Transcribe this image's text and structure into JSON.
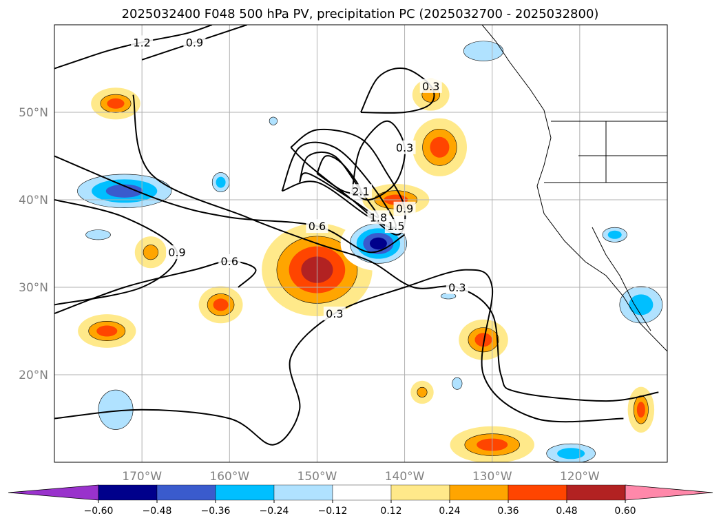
{
  "chart_data": {
    "type": "contour-map",
    "title": "2025032400 F048 500 hPa PV, precipitation PC (2025032700 - 2025032800)",
    "xlim": [
      -180,
      -110
    ],
    "ylim": [
      10,
      60
    ],
    "grid": true,
    "lon_ticks": [
      {
        "value": -170,
        "label": "170°W"
      },
      {
        "value": -160,
        "label": "160°W"
      },
      {
        "value": -150,
        "label": "150°W"
      },
      {
        "value": -140,
        "label": "140°W"
      },
      {
        "value": -130,
        "label": "130°W"
      },
      {
        "value": -120,
        "label": "120°W"
      }
    ],
    "lat_ticks": [
      {
        "value": 20,
        "label": "20°N"
      },
      {
        "value": 30,
        "label": "30°N"
      },
      {
        "value": 40,
        "label": "40°N"
      },
      {
        "value": 50,
        "label": "50°N"
      }
    ],
    "colorbar": {
      "levels": [
        "−0.60",
        "−0.48",
        "−0.36",
        "−0.24",
        "−0.12",
        "0.12",
        "0.24",
        "0.36",
        "0.48",
        "0.60"
      ],
      "colors": [
        "#9932cc",
        "#00008b",
        "#3a5bcd",
        "#00bfff",
        "#b0e2ff",
        "#ffffff",
        "#ffe98a",
        "#ffa500",
        "#ff4500",
        "#b22222",
        "#ff88aa"
      ]
    },
    "pv_contours": [
      {
        "label": "0.3",
        "points": [
          [
            -180,
            15
          ],
          [
            -170,
            16
          ],
          [
            -160,
            15
          ],
          [
            -155,
            12
          ],
          [
            -152,
            16
          ],
          [
            -153,
            22
          ],
          [
            -148,
            27
          ],
          [
            -140,
            30
          ],
          [
            -133,
            32
          ],
          [
            -130,
            30
          ],
          [
            -131,
            20
          ],
          [
            -125,
            15
          ],
          [
            -115,
            15
          ]
        ]
      },
      {
        "label": "0.3",
        "points": [
          [
            -145,
            50
          ],
          [
            -143,
            54
          ],
          [
            -140,
            55
          ],
          [
            -137,
            53
          ],
          [
            -137,
            51
          ],
          [
            -140,
            50
          ],
          [
            -145,
            50
          ]
        ]
      },
      {
        "label": "0.3",
        "points": [
          [
            -146,
            41
          ],
          [
            -145,
            46
          ],
          [
            -142,
            49
          ],
          [
            -140,
            46
          ],
          [
            -141,
            42
          ],
          [
            -144,
            40
          ],
          [
            -146,
            41
          ]
        ]
      },
      {
        "label": "0.3",
        "points": [
          [
            -171,
            52
          ],
          [
            -169,
            43
          ],
          [
            -158,
            38
          ],
          [
            -150,
            35
          ],
          [
            -144,
            33
          ],
          [
            -139,
            30
          ],
          [
            -134,
            30
          ],
          [
            -130,
            27
          ],
          [
            -129,
            20
          ],
          [
            -127,
            18
          ],
          [
            -117,
            17
          ],
          [
            -111,
            18
          ]
        ]
      },
      {
        "label": "0.6",
        "points": [
          [
            -180,
            45
          ],
          [
            -168,
            40
          ],
          [
            -160,
            38
          ],
          [
            -150,
            37
          ],
          [
            -144,
            34
          ],
          [
            -140,
            36
          ]
        ]
      },
      {
        "label": "0.6",
        "points": [
          [
            -180,
            27
          ],
          [
            -172,
            30
          ],
          [
            -164,
            32
          ],
          [
            -160,
            33
          ],
          [
            -157,
            32
          ],
          [
            -159,
            30
          ]
        ]
      },
      {
        "label": "0.9",
        "points": [
          [
            -180,
            40
          ],
          [
            -172,
            38
          ],
          [
            -166,
            34
          ],
          [
            -170,
            30
          ],
          [
            -180,
            28
          ]
        ]
      },
      {
        "label": "0.9",
        "points": [
          [
            -170,
            56
          ],
          [
            -164,
            58
          ],
          [
            -158,
            60
          ]
        ]
      },
      {
        "label": "0.9",
        "points": [
          [
            -153,
            46
          ],
          [
            -150,
            48
          ],
          [
            -145,
            47
          ],
          [
            -142,
            43
          ],
          [
            -140,
            39
          ],
          [
            -141,
            36
          ],
          [
            -146,
            40
          ],
          [
            -151,
            44
          ],
          [
            -153,
            46
          ]
        ]
      },
      {
        "label": "1.2",
        "points": [
          [
            -180,
            55
          ],
          [
            -174,
            57
          ],
          [
            -170,
            58
          ],
          [
            -165,
            59
          ],
          [
            -162,
            60
          ]
        ]
      },
      {
        "label": "1.5",
        "points": [
          [
            -154,
            41
          ],
          [
            -152,
            46
          ],
          [
            -148,
            46
          ],
          [
            -144,
            42
          ],
          [
            -141,
            37
          ],
          [
            -144,
            38
          ],
          [
            -150,
            42
          ],
          [
            -154,
            41
          ]
        ]
      },
      {
        "label": "1.8",
        "points": [
          [
            -152,
            42
          ],
          [
            -151,
            45
          ],
          [
            -148,
            45
          ],
          [
            -145,
            41
          ],
          [
            -143,
            38
          ],
          [
            -146,
            40
          ],
          [
            -151,
            43
          ],
          [
            -152,
            42
          ]
        ]
      },
      {
        "label": "2.1",
        "points": [
          [
            -150,
            43
          ],
          [
            -149,
            45
          ],
          [
            -147,
            44
          ],
          [
            -145,
            41
          ],
          [
            -147,
            41
          ],
          [
            -150,
            43
          ]
        ]
      }
    ],
    "precip_pc_blobs": [
      {
        "lon": -150,
        "lat": 32,
        "rx": 6,
        "ry": 5,
        "values": [
          0.24,
          0.36,
          0.48
        ]
      },
      {
        "lon": -143,
        "lat": 35,
        "rx": 4,
        "ry": 2.8,
        "values": [
          -0.24,
          -0.36,
          -0.48,
          -0.6
        ]
      },
      {
        "lon": -141,
        "lat": 40,
        "rx": 3.5,
        "ry": 1.5,
        "values": [
          0.24,
          0.36
        ]
      },
      {
        "lon": -136,
        "lat": 46,
        "rx": 2.8,
        "ry": 3,
        "values": [
          0.24,
          0.36
        ]
      },
      {
        "lon": -137,
        "lat": 52,
        "rx": 1.8,
        "ry": 1.5,
        "values": [
          0.24
        ]
      },
      {
        "lon": -172,
        "lat": 41,
        "rx": 7,
        "ry": 2.5,
        "values": [
          -0.24,
          -0.36,
          -0.48
        ]
      },
      {
        "lon": -173,
        "lat": 51,
        "rx": 2.5,
        "ry": 1.5,
        "values": [
          0.24,
          0.36
        ]
      },
      {
        "lon": -175,
        "lat": 36,
        "rx": 2.5,
        "ry": 1,
        "values": [
          -0.24
        ]
      },
      {
        "lon": -169,
        "lat": 34,
        "rx": 1.5,
        "ry": 1.5,
        "values": [
          0.24
        ]
      },
      {
        "lon": -161,
        "lat": 42,
        "rx": 1.4,
        "ry": 1.6,
        "values": [
          -0.24,
          -0.36
        ]
      },
      {
        "lon": -155,
        "lat": 49,
        "rx": 0.8,
        "ry": 0.8,
        "values": [
          -0.24
        ]
      },
      {
        "lon": -161,
        "lat": 28,
        "rx": 2.2,
        "ry": 1.8,
        "values": [
          0.24,
          0.36
        ]
      },
      {
        "lon": -174,
        "lat": 25,
        "rx": 3,
        "ry": 1.6,
        "values": [
          0.24,
          0.36
        ]
      },
      {
        "lon": -131,
        "lat": 24,
        "rx": 2.5,
        "ry": 2,
        "values": [
          0.24,
          0.36
        ]
      },
      {
        "lon": -131,
        "lat": 57,
        "rx": 4,
        "ry": 2,
        "values": [
          -0.24
        ]
      },
      {
        "lon": -173,
        "lat": 16,
        "rx": 3.5,
        "ry": 4,
        "values": [
          -0.24
        ]
      },
      {
        "lon": -130,
        "lat": 12,
        "rx": 4.5,
        "ry": 1.8,
        "values": [
          0.24,
          0.36
        ]
      },
      {
        "lon": -121,
        "lat": 11,
        "rx": 4,
        "ry": 1.6,
        "values": [
          -0.24,
          -0.36
        ]
      },
      {
        "lon": -113,
        "lat": 16,
        "rx": 1.2,
        "ry": 2.3,
        "values": [
          0.24,
          0.36
        ]
      },
      {
        "lon": -113,
        "lat": 28,
        "rx": 3.5,
        "ry": 3,
        "values": [
          -0.24,
          -0.36
        ]
      },
      {
        "lon": -116,
        "lat": 36,
        "rx": 2,
        "ry": 1.2,
        "values": [
          -0.24,
          -0.36
        ]
      },
      {
        "lon": -138,
        "lat": 18,
        "rx": 1,
        "ry": 1,
        "values": [
          0.24
        ]
      },
      {
        "lon": -135,
        "lat": 29,
        "rx": 1.5,
        "ry": 0.6,
        "values": [
          -0.24
        ]
      },
      {
        "lon": -134,
        "lat": 19,
        "rx": 1,
        "ry": 1.2,
        "values": [
          -0.24
        ]
      }
    ]
  }
}
